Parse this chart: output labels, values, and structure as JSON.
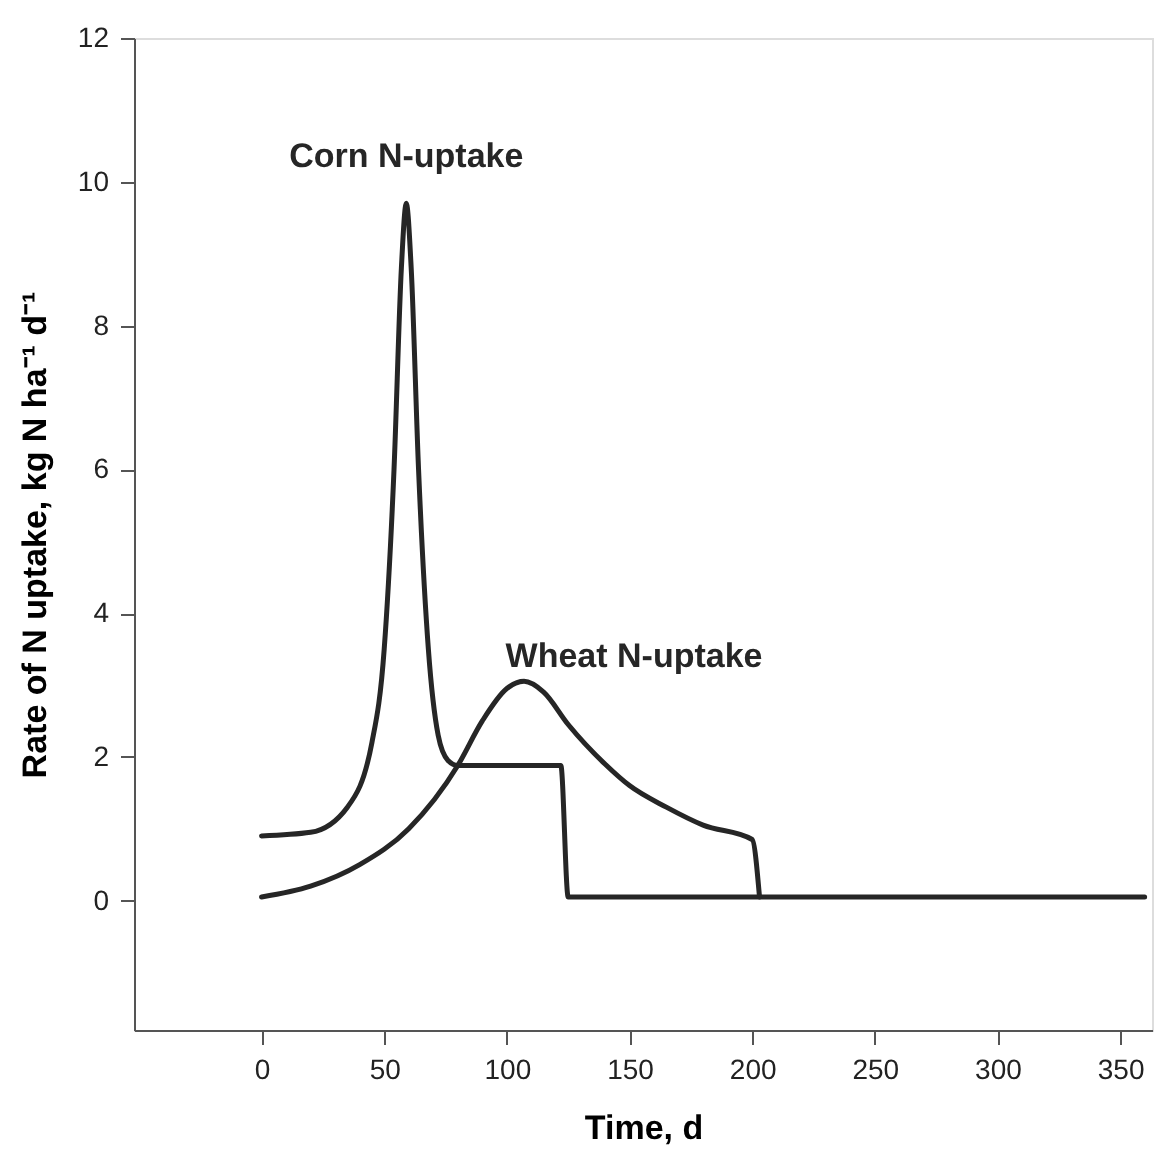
{
  "chart_data": {
    "type": "line",
    "xlabel": "Time, d",
    "ylabel": "Rate of N uptake, kg N ha⁻¹ d⁻¹",
    "xlim": [
      -52,
      363
    ],
    "xticks": [
      0,
      50,
      100,
      150,
      200,
      250,
      300,
      350
    ],
    "ylim": [
      -1.8,
      12
    ],
    "yticks": [
      0,
      2,
      4,
      6,
      8,
      10,
      12
    ],
    "grid": false,
    "marker": "none",
    "line_style": "solid",
    "series": [
      {
        "name": "Corn N-uptake",
        "color": "#262626",
        "x": [
          0,
          20,
          35,
          45,
          50,
          54,
          57,
          59,
          61,
          64,
          68,
          72,
          76,
          80,
          122,
          125,
          360
        ],
        "values": [
          0.9,
          0.95,
          1.3,
          2.2,
          3.5,
          6,
          8.8,
          9.7,
          8.8,
          6,
          3.5,
          2.3,
          1.95,
          1.88,
          1.88,
          0.05,
          0.05
        ]
      },
      {
        "name": "Wheat N-uptake",
        "color": "#262626",
        "x": [
          0,
          20,
          40,
          60,
          80,
          90,
          100,
          107,
          115,
          125,
          140,
          150,
          165,
          180,
          200,
          203
        ],
        "values": [
          0.05,
          0.2,
          0.5,
          1.0,
          1.88,
          2.5,
          2.95,
          3.05,
          2.9,
          2.45,
          1.9,
          1.6,
          1.3,
          1.05,
          0.85,
          0.05
        ]
      }
    ]
  }
}
